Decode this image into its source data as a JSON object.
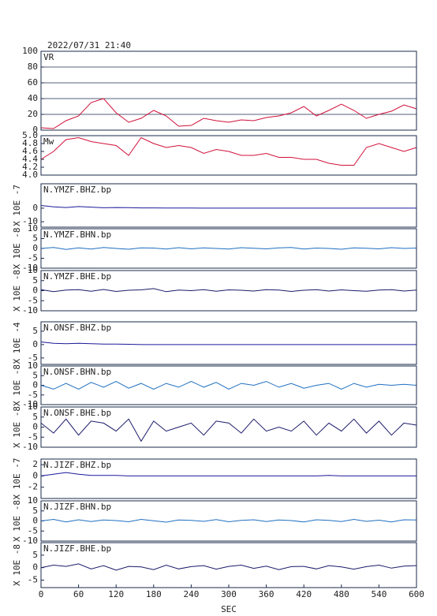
{
  "title": "2022/07/31 21:40",
  "xlabel": "SEC",
  "x": [
    0,
    20,
    40,
    60,
    80,
    100,
    120,
    140,
    160,
    180,
    200,
    220,
    240,
    260,
    280,
    300,
    320,
    340,
    360,
    380,
    400,
    420,
    440,
    460,
    480,
    500,
    520,
    540,
    560,
    580,
    600
  ],
  "xlim": [
    0,
    600
  ],
  "xticks": [
    0,
    60,
    120,
    180,
    240,
    300,
    360,
    420,
    480,
    540,
    600
  ],
  "chart_data": [
    {
      "type": "line",
      "label": "VR",
      "color": "#d0103a",
      "grid": true,
      "ylim": [
        0,
        100
      ],
      "yticks": [
        0,
        20,
        40,
        60,
        80,
        100
      ],
      "values": [
        3,
        2,
        12,
        18,
        35,
        40,
        22,
        10,
        15,
        25,
        18,
        5,
        6,
        15,
        12,
        10,
        13,
        12,
        16,
        18,
        22,
        30,
        18,
        25,
        33,
        25,
        15,
        20,
        24,
        32,
        27
      ]
    },
    {
      "type": "line",
      "label": "Mw",
      "color": "#d0103a",
      "grid": false,
      "ylim": [
        4,
        5
      ],
      "yticks": [
        {
          "value": 4,
          "label": "4.0"
        },
        {
          "value": 4.2,
          "label": "4.2"
        },
        {
          "value": 4.4,
          "label": "4.4"
        },
        {
          "value": 4.6,
          "label": "4.6"
        },
        {
          "value": 4.8,
          "label": "4.8"
        },
        {
          "value": 5,
          "label": "5.0"
        }
      ],
      "values": [
        4.4,
        4.6,
        4.9,
        4.95,
        4.85,
        4.8,
        4.75,
        4.5,
        4.95,
        4.8,
        4.7,
        4.75,
        4.7,
        4.55,
        4.65,
        4.6,
        4.5,
        4.5,
        4.55,
        4.45,
        4.45,
        4.4,
        4.4,
        4.3,
        4.25,
        4.25,
        4.7,
        4.8,
        4.7,
        4.6,
        4.7
      ]
    },
    {
      "type": "line",
      "label": "N.YMZF.BHZ.bp",
      "ylabel": "X 10E -7",
      "color": "#1a1a9a",
      "ylim": [
        -14,
        18
      ],
      "yticks": [
        -10,
        0
      ],
      "values": [
        2,
        1,
        0.5,
        1.2,
        0.8,
        0.3,
        0.5,
        0.4,
        0.2,
        0.2,
        0.1,
        0.1,
        0.1,
        0,
        0,
        0,
        0,
        0,
        0,
        0,
        0,
        0,
        0,
        0,
        0,
        0,
        0,
        0,
        0,
        0,
        0
      ]
    },
    {
      "type": "line",
      "label": "N.YMZF.BHN.bp",
      "ylabel": "X 10E -8",
      "color": "#1f6fc0",
      "ylim": [
        -10,
        10
      ],
      "yticks": [
        -10,
        -5,
        0,
        5,
        10
      ],
      "values": [
        0,
        0.5,
        -0.5,
        0.3,
        -0.3,
        0.5,
        0,
        -0.4,
        0.3,
        0.2,
        -0.3,
        0.4,
        -0.2,
        0.3,
        0,
        -0.3,
        0.4,
        0.1,
        -0.2,
        0.3,
        0.5,
        -0.3,
        0.2,
        0,
        -0.4,
        0.3,
        0.1,
        -0.2,
        0.4,
        0,
        0.2
      ]
    },
    {
      "type": "line",
      "label": "N.YMZF.BHE.bp",
      "ylabel": "X 10E -8",
      "color": "#1a1a6a",
      "ylim": [
        -10,
        10
      ],
      "yticks": [
        -10,
        -5,
        0,
        5,
        10
      ],
      "values": [
        0.5,
        -0.5,
        0.3,
        0.5,
        -0.3,
        0.6,
        -0.4,
        0.2,
        0.4,
        1,
        -0.5,
        0.3,
        0,
        0.5,
        -0.3,
        0.4,
        0.2,
        -0.2,
        0.5,
        0.3,
        -0.4,
        0.2,
        0.5,
        -0.2,
        0.4,
        0,
        -0.3,
        0.3,
        0.5,
        -0.2,
        0.3
      ]
    },
    {
      "type": "line",
      "label": "N.ONSF.BHZ.bp",
      "ylabel": "X 10E -4",
      "color": "#1a1a9a",
      "ylim": [
        -7.4,
        8.5
      ],
      "yticks": [
        -5,
        0,
        5
      ],
      "values": [
        1,
        0.5,
        0.3,
        0.5,
        0.3,
        0.2,
        0.2,
        0.1,
        0,
        0,
        0,
        0,
        0,
        0,
        0,
        0,
        0,
        0,
        0,
        0,
        0,
        0,
        0,
        0,
        0,
        0,
        0,
        0,
        0,
        0,
        0
      ]
    },
    {
      "type": "line",
      "label": "N.ONSF.BHN.bp",
      "ylabel": "X 10E -8",
      "color": "#1f6fc0",
      "ylim": [
        -10,
        10
      ],
      "yticks": [
        -10,
        -5,
        0,
        5,
        10
      ],
      "values": [
        0,
        -2,
        1,
        -2,
        1.5,
        -1,
        2,
        -1.5,
        1,
        -2,
        1,
        -1,
        2,
        -1,
        1.5,
        -2,
        1,
        0,
        2,
        -1,
        1,
        -1.5,
        0,
        1,
        -2,
        1,
        -1,
        0.5,
        0,
        0.5,
        0
      ]
    },
    {
      "type": "line",
      "label": "N.ONSF.BHE.bp",
      "ylabel": "X 10E -8",
      "color": "#1a1a6a",
      "ylim": [
        -10,
        10
      ],
      "yticks": [
        -10,
        -5,
        0,
        5,
        10
      ],
      "values": [
        2,
        -3,
        4,
        -4,
        3,
        2,
        -2,
        4,
        -7,
        3,
        -2,
        0,
        2,
        -4,
        3,
        2,
        -3,
        4,
        -2,
        0,
        -2,
        3,
        -4,
        2,
        -2,
        4,
        -3,
        3,
        -4,
        2,
        1
      ]
    },
    {
      "type": "line",
      "label": "N.JIZF.BHZ.bp",
      "ylabel": "X 10E -7",
      "color": "#1a1a9a",
      "ylim": [
        -4,
        3
      ],
      "yticks": [
        -2,
        0,
        2
      ],
      "values": [
        0,
        0.3,
        0.6,
        0.3,
        0.1,
        0.1,
        0.1,
        0,
        0,
        0,
        0,
        0,
        0,
        0,
        0,
        0,
        0,
        0,
        0,
        0,
        0,
        0,
        0,
        0.1,
        0,
        0,
        0,
        0,
        0,
        0,
        0
      ]
    },
    {
      "type": "line",
      "label": "N.JIZF.BHN.bp",
      "ylabel": "X 10E -8",
      "color": "#1f6fc0",
      "ylim": [
        -10,
        10
      ],
      "yticks": [
        -10,
        -5,
        0,
        5,
        10
      ],
      "values": [
        0,
        0.8,
        -0.5,
        0.6,
        -0.3,
        0.5,
        0.2,
        -0.4,
        0.8,
        0.1,
        -0.6,
        0.5,
        0.3,
        -0.2,
        0.7,
        -0.4,
        0.3,
        0.6,
        -0.3,
        0.5,
        0.2,
        -0.5,
        0.6,
        0.3,
        -0.3,
        0.8,
        -0.2,
        0.4,
        -0.5,
        0.6,
        0.5
      ]
    },
    {
      "type": "line",
      "label": "N.JIZF.BHE.bp",
      "ylabel": "X 10E -8",
      "color": "#1a1a6a",
      "ylim": [
        -8,
        10
      ],
      "yticks": [
        -5,
        0,
        5
      ],
      "values": [
        0,
        1,
        0.5,
        1.5,
        -0.5,
        0.8,
        -1,
        0.5,
        0.3,
        -0.8,
        1,
        -0.5,
        0.4,
        0.8,
        -0.6,
        0.5,
        1,
        -0.3,
        0.6,
        -0.8,
        0.4,
        0.5,
        -0.5,
        0.8,
        0.3,
        -0.6,
        0.4,
        1,
        -0.2,
        0.6,
        0.8
      ]
    }
  ]
}
